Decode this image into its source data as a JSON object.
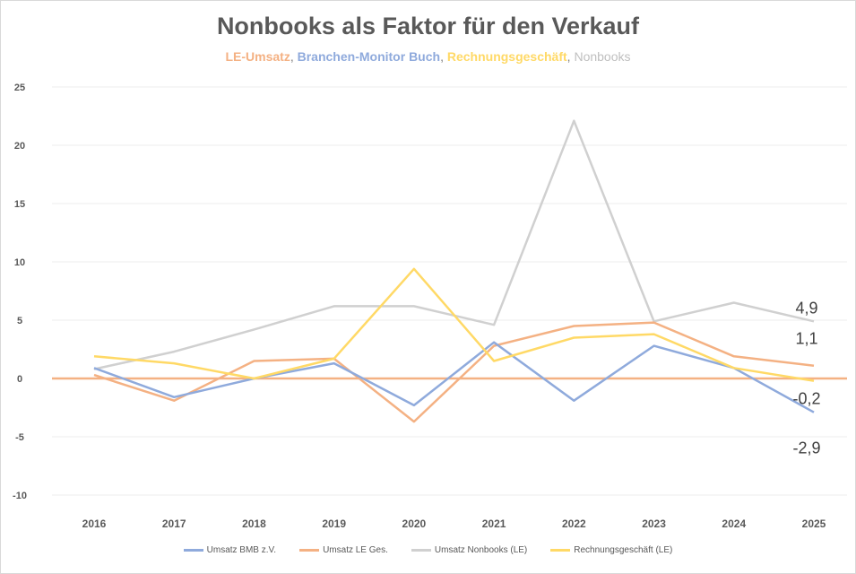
{
  "chart_data": {
    "type": "line",
    "title": "Nonbooks als Faktor für den Verkauf",
    "subtitle": [
      {
        "text": "LE-Umsatz",
        "color": "#f4b183"
      },
      {
        "text": "Branchen-Monitor Buch",
        "color": "#8faadc"
      },
      {
        "text": "Rechnungsgeschäft",
        "color": "#ffd966"
      },
      {
        "text": "Nonbooks",
        "color": "#bfbfbf"
      }
    ],
    "x": [
      "2016",
      "2017",
      "2018",
      "2019",
      "2020",
      "2021",
      "2022",
      "2023",
      "2024",
      "2025"
    ],
    "ylim": [
      -10,
      25
    ],
    "yticks": [
      "-10",
      "-5",
      "0",
      "5",
      "10",
      "15",
      "20",
      "25"
    ],
    "grid": true,
    "legend_position": "bottom",
    "series": [
      {
        "name": "Umsatz BMB z.V.",
        "color": "#8faadc",
        "values": [
          0.9,
          -1.6,
          0,
          1.3,
          -2.3,
          3.1,
          -1.9,
          2.8,
          0.9,
          -2.9
        ],
        "end_label": "-2,9"
      },
      {
        "name": "Umsatz LE Ges.",
        "color": "#f4b183",
        "values": [
          0.3,
          -1.9,
          1.5,
          1.7,
          -3.7,
          2.8,
          4.5,
          4.8,
          1.9,
          1.1
        ],
        "end_label": "1,1"
      },
      {
        "name": "Umsatz Nonbooks (LE)",
        "color": "#d0d0d0",
        "values": [
          0.8,
          2.3,
          4.2,
          6.2,
          6.2,
          4.6,
          22.1,
          4.9,
          6.5,
          4.9
        ],
        "end_label": "4,9"
      },
      {
        "name": "Rechnungsgeschäft (LE)",
        "color": "#ffd966",
        "values": [
          1.9,
          1.3,
          0,
          1.7,
          9.4,
          1.5,
          3.5,
          3.8,
          0.9,
          -0.2
        ],
        "end_label": "-0,2"
      }
    ]
  }
}
